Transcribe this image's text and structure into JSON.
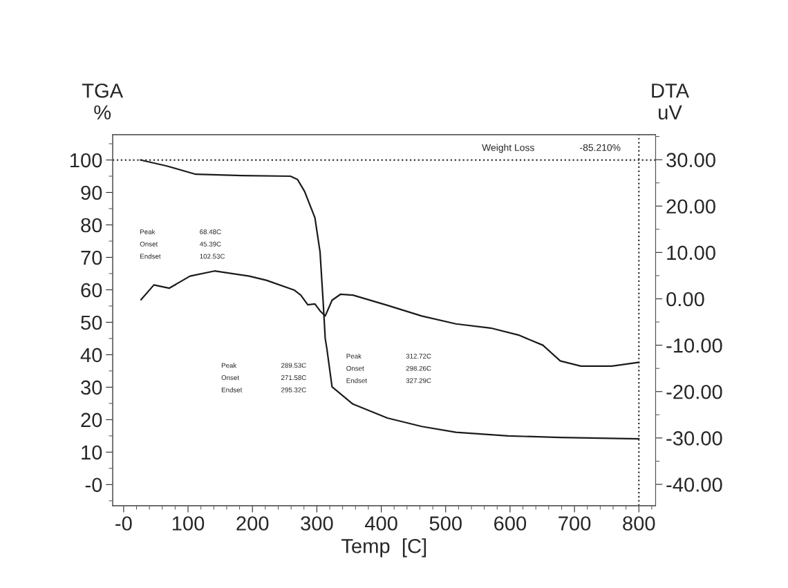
{
  "chart_data": {
    "type": "line",
    "xlabel": "Temp  [C]",
    "ylabel": "TGA\n%",
    "y2label": "DTA\nuV",
    "xlim": [
      -17,
      826
    ],
    "ylim": [
      -6.5,
      107.8
    ],
    "y2lim": [
      -44.6,
      35.4
    ],
    "xticks": [
      {
        "value": 0,
        "label": "-0"
      },
      100,
      200,
      300,
      400,
      500,
      600,
      700,
      800
    ],
    "yticks": [
      {
        "value": 0,
        "label": "-0"
      },
      10,
      20,
      30,
      40,
      50,
      60,
      70,
      80,
      90,
      100
    ],
    "y2ticks": [
      {
        "value": -40,
        "label": "-40.00"
      },
      {
        "value": -30,
        "label": "-30.00"
      },
      {
        "value": -20,
        "label": "-20.00"
      },
      {
        "value": -10,
        "label": "-10.00"
      },
      {
        "value": 0,
        "label": "0.00"
      },
      {
        "value": 10,
        "label": "10.00"
      },
      {
        "value": 20,
        "label": "20.00"
      },
      {
        "value": 30,
        "label": "30.00"
      }
    ],
    "grid": false,
    "legend": false,
    "marker": "none",
    "line_style": "solid",
    "series": [
      {
        "color": "#1a1a1a",
        "x": [
          26,
          66,
          112,
          184,
          259,
          270,
          281,
          297,
          305,
          310,
          313,
          315.6,
          323.6,
          356,
          409.5,
          463,
          516,
          597,
          678,
          800
        ],
        "values": [
          100,
          98.2,
          95.6,
          95.2,
          95.0,
          94,
          90.3,
          82.2,
          71.6,
          55.6,
          45,
          41.8,
          30.1,
          24.8,
          20.5,
          17.9,
          16.1,
          15.0,
          14.5,
          14.1
        ]
      },
      {
        "color": "#1a1a1a",
        "axis": "y2",
        "x": [
          27,
          47,
          71,
          103,
          141,
          195,
          221.6,
          264.6,
          275,
          286,
          297,
          305,
          313,
          323.6,
          337,
          356,
          409.5,
          463,
          516,
          570,
          613,
          651,
          678,
          710,
          758,
          800
        ],
        "values": [
          -0.2,
          3.0,
          2.3,
          4.9,
          6.0,
          4.9,
          4.0,
          1.9,
          0.8,
          -1.3,
          -1.1,
          -2.6,
          -3.7,
          -0.3,
          1.0,
          0.8,
          -1.4,
          -3.7,
          -5.4,
          -6.3,
          -7.8,
          -10.0,
          -13.4,
          -14.5,
          -14.5,
          -13.7
        ]
      }
    ],
    "ref_lines": [
      {
        "axis": "y",
        "value": 100,
        "line_style": "dotted",
        "color": "#333333"
      },
      {
        "axis": "x",
        "value": 800,
        "line_style": "dotted",
        "color": "#333333"
      }
    ],
    "annotations": [
      "Weight Loss\t-85.210%",
      "Peak\t68.48C\nOnset\t45.39C\nEndset\t102.53C",
      "Peak\t289.53C\nOnset\t271.58C\nEndset\t295.32C",
      "Peak\t312.72C\nOnset\t298.26C\nEndset\t327.29C"
    ]
  }
}
